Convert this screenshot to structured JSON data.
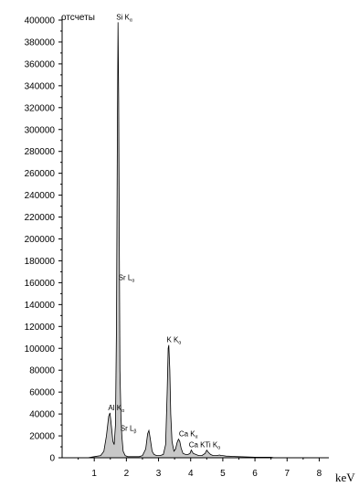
{
  "chart_data": {
    "type": "area",
    "ylabel": "отсчеты",
    "xlabel": "keV",
    "xlim": [
      0,
      8.3
    ],
    "ylim": [
      0,
      400000
    ],
    "x_ticks": [
      1,
      2,
      3,
      4,
      5,
      6,
      7,
      8
    ],
    "y_ticks": [
      0,
      20000,
      40000,
      60000,
      80000,
      100000,
      120000,
      140000,
      160000,
      180000,
      200000,
      220000,
      240000,
      260000,
      280000,
      300000,
      320000,
      340000,
      360000,
      380000,
      400000
    ],
    "grid": false,
    "fill_color": "#c8c8c8",
    "line_color": "#000000",
    "series": [
      {
        "x": [
          0.0,
          0.8,
          1.0,
          1.2,
          1.3,
          1.38,
          1.45,
          1.49,
          1.53,
          1.58,
          1.62,
          1.66,
          1.69,
          1.72,
          1.74,
          1.76,
          1.78,
          1.8,
          1.83,
          1.86,
          1.9,
          1.96,
          2.04,
          2.1,
          2.2,
          2.3,
          2.4,
          2.5,
          2.6,
          2.66,
          2.7,
          2.74,
          2.8,
          2.86,
          2.94,
          3.05,
          3.15,
          3.22,
          3.27,
          3.3,
          3.32,
          3.35,
          3.38,
          3.42,
          3.48,
          3.53,
          3.58,
          3.62,
          3.66,
          3.7,
          3.76,
          3.84,
          3.92,
          3.98,
          4.02,
          4.08,
          4.16,
          4.25,
          4.35,
          4.45,
          4.5,
          4.55,
          4.62,
          4.7,
          4.8,
          4.9,
          4.95,
          5.0,
          5.1,
          5.5,
          6.0,
          6.5,
          6.6,
          6.7,
          8.3
        ],
        "y": [
          0,
          0,
          1000,
          2000,
          6000,
          20000,
          38000,
          41000,
          30000,
          15000,
          12000,
          30000,
          120000,
          300000,
          398000,
          330000,
          200000,
          80000,
          38000,
          20000,
          6000,
          2000,
          1000,
          1000,
          1000,
          1000,
          1000,
          2000,
          8000,
          22000,
          25000,
          18000,
          6000,
          3000,
          2000,
          2000,
          3000,
          12000,
          60000,
          100000,
          103000,
          80000,
          40000,
          15000,
          6000,
          8000,
          14000,
          17000,
          15000,
          9000,
          4000,
          3000,
          3000,
          4000,
          7000,
          4000,
          3000,
          2000,
          2000,
          4000,
          7000,
          5000,
          3000,
          2000,
          2000,
          2500,
          2000,
          2000,
          1500,
          1000,
          500,
          500,
          0,
          0,
          0
        ]
      }
    ],
    "peak_labels": [
      {
        "text": "Si K",
        "sub": "α",
        "x": 1.74,
        "y": 398000
      },
      {
        "text": "Sr L",
        "sub": "α",
        "x": 1.81,
        "y": 160000
      },
      {
        "text": "Al K",
        "sub": "α",
        "x": 1.49,
        "y": 41000
      },
      {
        "text": "Sr L",
        "sub": "β",
        "x": 1.87,
        "y": 22000
      },
      {
        "text": "K K",
        "sub": "α",
        "x": 3.31,
        "y": 103000
      },
      {
        "text": "Ca K",
        "sub": "α",
        "x": 3.69,
        "y": 17000
      },
      {
        "text": "Ca K",
        "sub": "",
        "x": 4.0,
        "y": 7000
      },
      {
        "text": "Ti K",
        "sub": "α",
        "x": 4.5,
        "y": 7000
      }
    ]
  }
}
